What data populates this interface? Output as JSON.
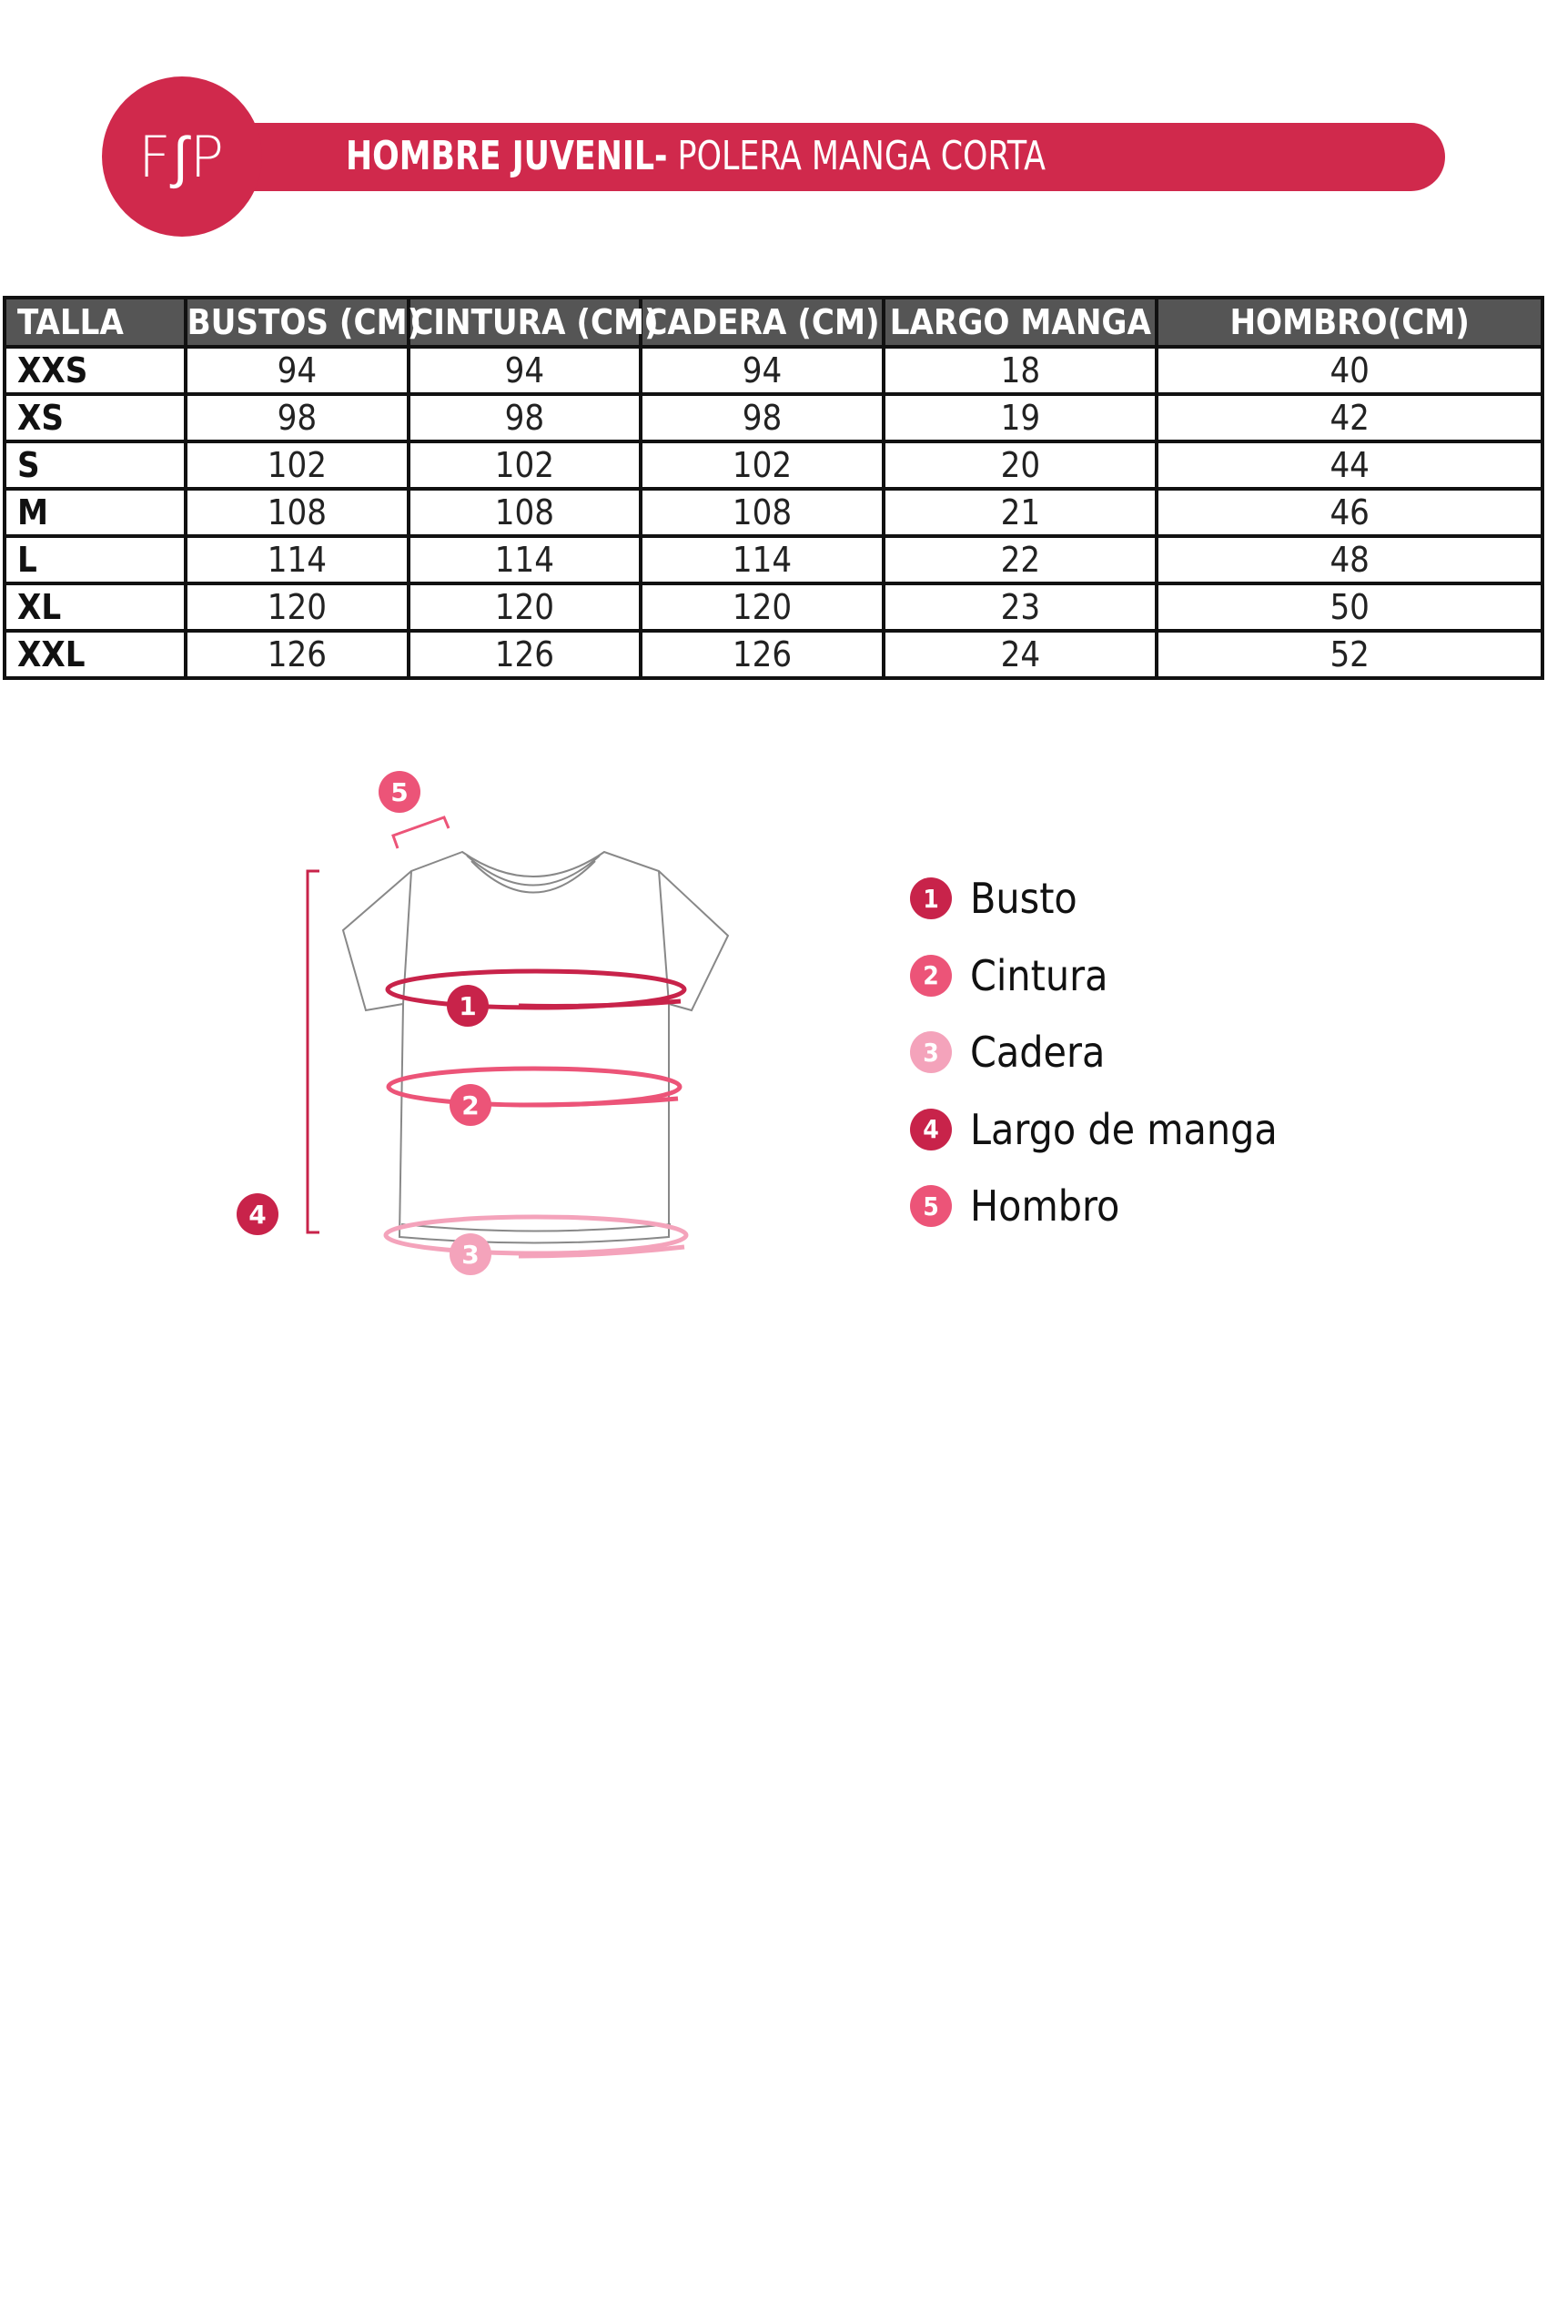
{
  "header": {
    "logo": "F∫P",
    "title_bold": "HOMBRE JUVENIL-",
    "title_light": " POLERA MANGA CORTA",
    "brand_color": "#d0294c"
  },
  "table": {
    "columns": [
      "TALLA",
      "BUSTOS (CM)",
      "CINTURA (CM)",
      "CADERA (CM)",
      "LARGO MANGA",
      "HOMBRO(CM)"
    ],
    "rows": [
      [
        "XXS",
        "94",
        "94",
        "94",
        "18",
        "40"
      ],
      [
        "XS",
        "98",
        "98",
        "98",
        "19",
        "42"
      ],
      [
        "S",
        "102",
        "102",
        "102",
        "20",
        "44"
      ],
      [
        "M",
        "108",
        "108",
        "108",
        "21",
        "46"
      ],
      [
        "L",
        "114",
        "114",
        "114",
        "22",
        "48"
      ],
      [
        "XL",
        "120",
        "120",
        "120",
        "23",
        "50"
      ],
      [
        "XXL",
        "126",
        "126",
        "126",
        "24",
        "52"
      ]
    ]
  },
  "legend": [
    {
      "num": "1",
      "label": "Busto",
      "color": "#c8234a"
    },
    {
      "num": "2",
      "label": "Cintura",
      "color": "#ec5478"
    },
    {
      "num": "3",
      "label": "Cadera",
      "color": "#f4a3bb"
    },
    {
      "num": "4",
      "label": "Largo de manga",
      "color": "#c8234a"
    },
    {
      "num": "5",
      "label": "Hombro",
      "color": "#ec5478"
    }
  ]
}
